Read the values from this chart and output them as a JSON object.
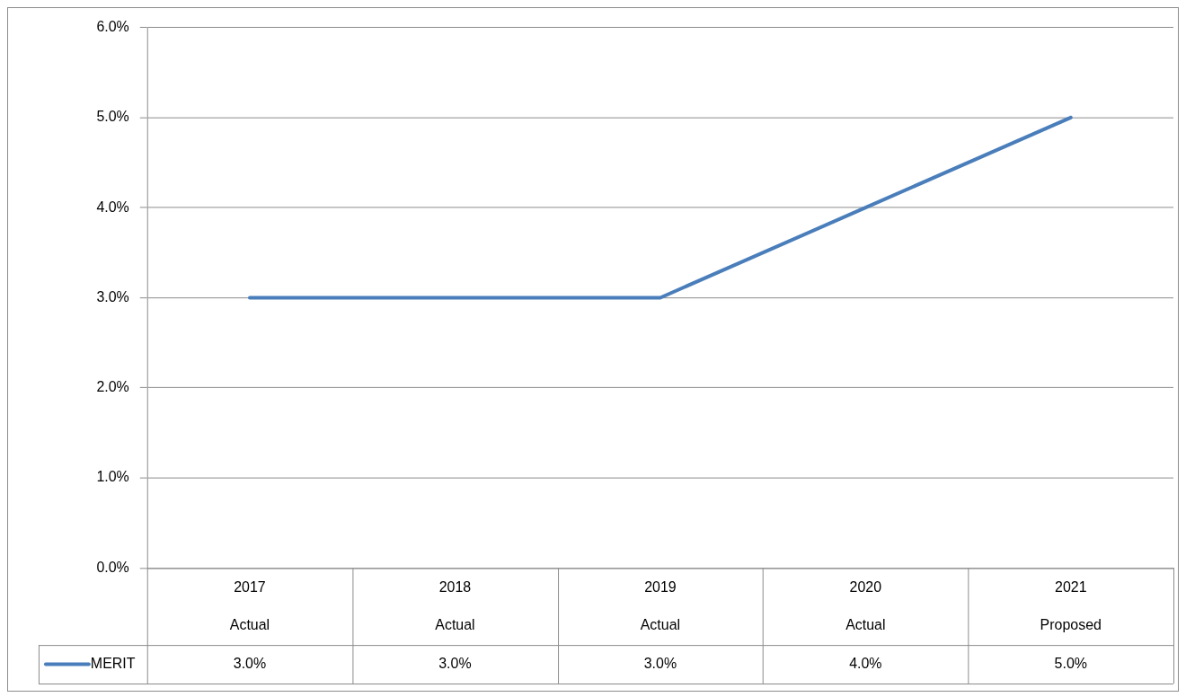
{
  "chart_data": {
    "type": "line",
    "categories": [
      "2017\nActual",
      "2018\nActual",
      "2019\nActual",
      "2020\nActual",
      "2021\nProposed"
    ],
    "series": [
      {
        "name": "MERIT",
        "color": "#4a7ebb",
        "values": [
          3.0,
          3.0,
          3.0,
          4.0,
          5.0
        ],
        "value_labels": [
          "3.0%",
          "3.0%",
          "3.0%",
          "4.0%",
          "5.0%"
        ]
      }
    ],
    "ylim": [
      0,
      6
    ],
    "yticks": [
      {
        "value": 0,
        "label": "0.0%"
      },
      {
        "value": 1,
        "label": "1.0%"
      },
      {
        "value": 2,
        "label": "2.0%"
      },
      {
        "value": 3,
        "label": "3.0%"
      },
      {
        "value": 4,
        "label": "4.0%"
      },
      {
        "value": 5,
        "label": "5.0%"
      },
      {
        "value": 6,
        "label": "6.0%"
      }
    ],
    "grid": "y",
    "legend": "bottom",
    "marker": "none",
    "line_style": "solid"
  }
}
